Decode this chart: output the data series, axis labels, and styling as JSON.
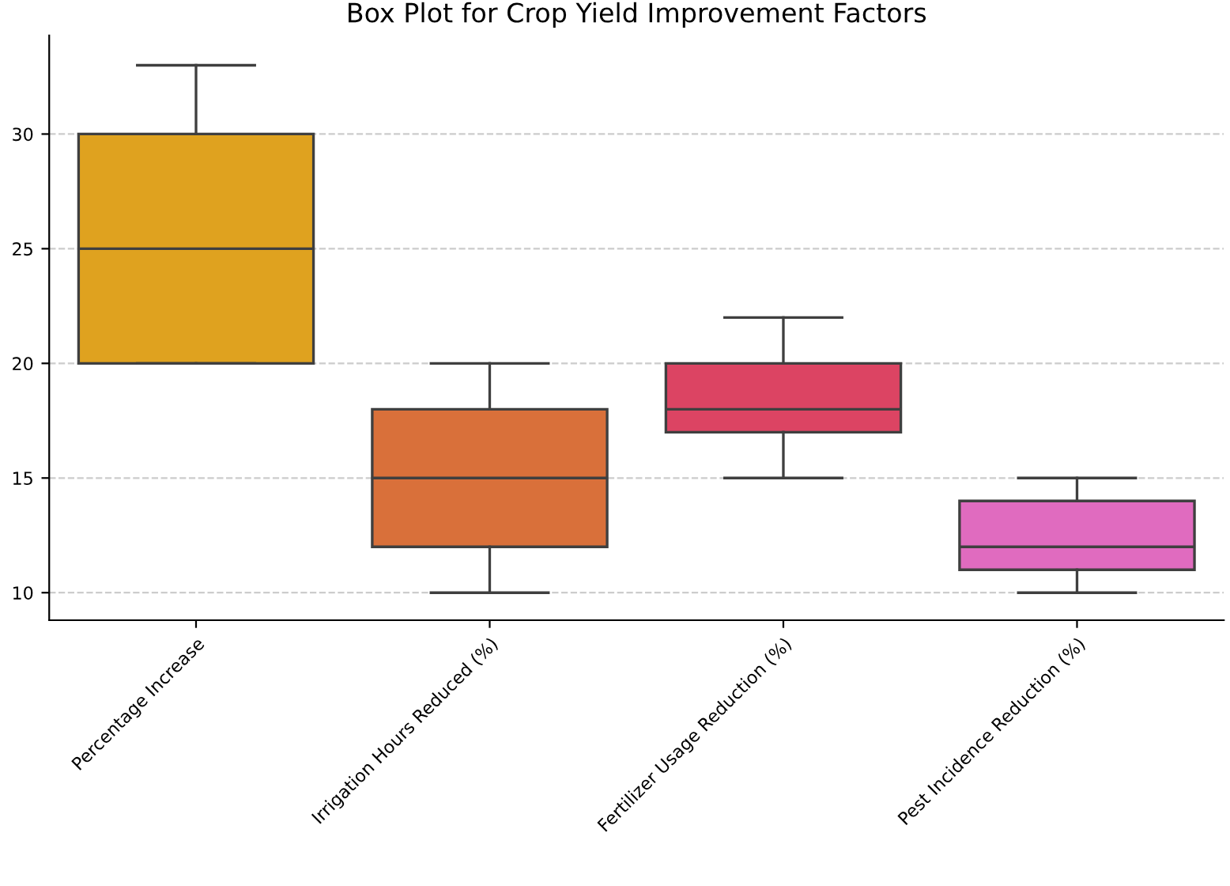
{
  "chart_data": {
    "type": "box",
    "title": "Box Plot for Crop Yield Improvement Factors",
    "categories": [
      "Percentage Increase",
      "Irrigation Hours Reduced (%)",
      "Fertilizer Usage Reduction (%)",
      "Pest Incidence Reduction (%)"
    ],
    "boxes": [
      {
        "low": 20,
        "q1": 20,
        "median": 25,
        "q3": 30,
        "high": 33
      },
      {
        "low": 10,
        "q1": 12,
        "median": 15,
        "q3": 18,
        "high": 20
      },
      {
        "low": 15,
        "q1": 17,
        "median": 18,
        "q3": 20,
        "high": 22
      },
      {
        "low": 10,
        "q1": 11,
        "median": 12,
        "q3": 14,
        "high": 15
      }
    ],
    "colors": [
      "#dfa21f",
      "#d9703a",
      "#dc4463",
      "#e06bbf"
    ],
    "ylim": [
      8.8,
      34.3
    ],
    "yticks": [
      10,
      15,
      20,
      25,
      30
    ],
    "grid": "y"
  }
}
